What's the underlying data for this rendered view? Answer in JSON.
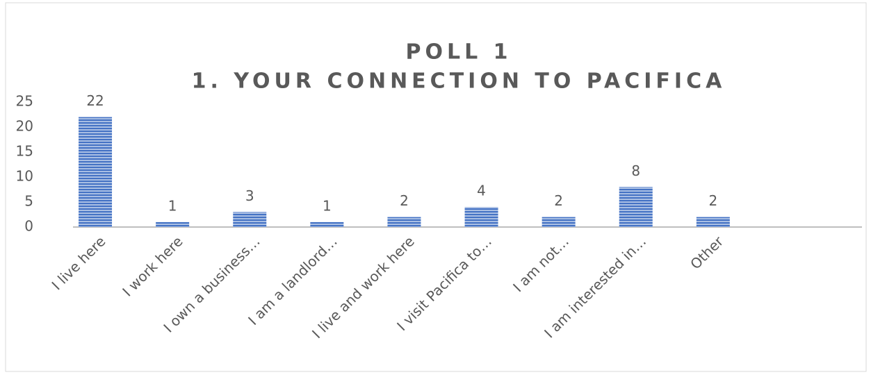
{
  "chart_data": {
    "type": "bar",
    "title": [
      "POLL 1",
      "1. YOUR CONNECTION TO PACIFICA"
    ],
    "categories": [
      "I live here",
      "I work here",
      "I own a business…",
      "I am a landlord…",
      "I live and work here",
      "I visit Pacifica to…",
      "I am not…",
      "I am interested in…",
      "Other"
    ],
    "values": [
      22,
      1,
      3,
      1,
      2,
      4,
      2,
      8,
      2
    ],
    "color": "#4472c4",
    "ylim": [
      0,
      25
    ],
    "yticks": [
      0,
      5,
      10,
      15,
      20,
      25
    ],
    "grid": false
  }
}
